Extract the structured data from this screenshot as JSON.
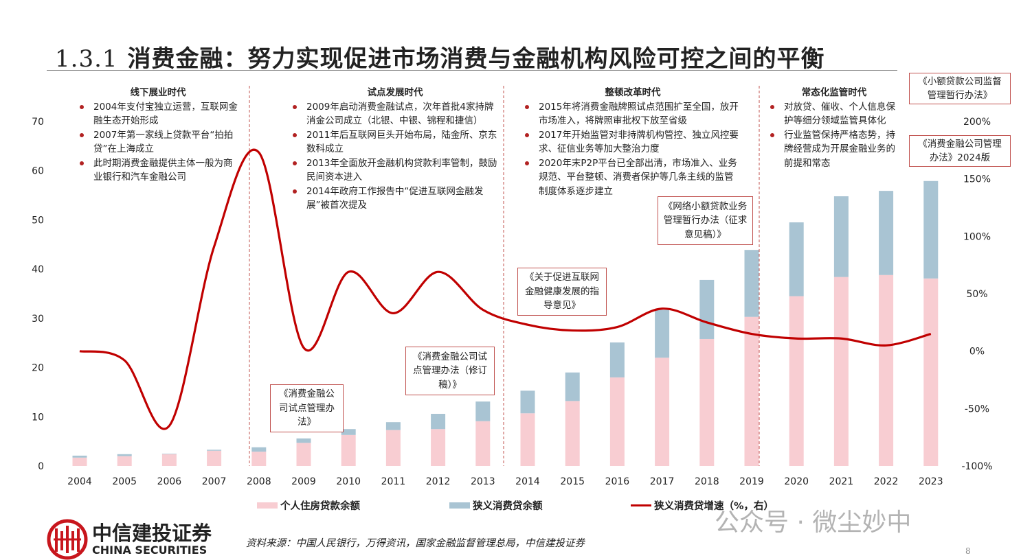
{
  "header": {
    "section_number": "1.3.1",
    "title": "消费金融：努力实现促进市场消费与金融机构风险可控之间的平衡"
  },
  "eras": [
    {
      "title": "线下展业时代",
      "bullets": [
        "2004年支付宝独立运营，互联网金融生态开始形成",
        "2007年第一家线上贷款平台“拍拍贷”在上海成立",
        "此时期消费金融提供主体一般为商业银行和汽车金融公司"
      ]
    },
    {
      "title": "试点发展时代",
      "bullets": [
        "2009年启动消费金融试点，次年首批4家持牌消金公司成立（北银、中银、锦程和捷信）",
        "2011年后互联网巨头开始布局，陆金所、京东数科成立",
        "2013年全面放开金融机构贷款利率管制，鼓励民间资本进入",
        "2014年政府工作报告中“促进互联网金融发展”被首次提及"
      ]
    },
    {
      "title": "整顿改革时代",
      "bullets": [
        "2015年将消费金融牌照试点范围扩至全国，放开市场准入，将牌照审批权下放至省级",
        "2017年开始监管对非持牌机构管控、独立风控要求、征信业务等加大整治力度",
        "2020年末P2P平台已全部出清，市场准入、业务规范、平台整顿、消费者保护等几条主线的监管制度体系逐步建立"
      ]
    },
    {
      "title": "常态化监管时代",
      "bullets": [
        "对放贷、催收、个人信息保护等细分领域监管具体化",
        "行业监管保持严格态势，持牌经营成为开展金融业务的前提和常态"
      ]
    }
  ],
  "annotations": [
    "《消费金融公司试点管理办法》",
    "《消费金融公司试点管理办法（修订稿）》",
    "《关于促进互联网金融健康发展的指导意见》",
    "《网络小额贷款业务管理暂行办法（征求意见稿）》",
    "《小额贷款公司监督管理暂行办法》",
    "《消费金融公司管理办法》2024版"
  ],
  "chart_data": {
    "type": "bar",
    "stacked": true,
    "categories": [
      "2004",
      "2005",
      "2006",
      "2007",
      "2008",
      "2009",
      "2010",
      "2011",
      "2012",
      "2013",
      "2014",
      "2015",
      "2016",
      "2017",
      "2018",
      "2019",
      "2020",
      "2021",
      "2022",
      "2023"
    ],
    "series": [
      {
        "name": "个人住房贷款余额",
        "type": "bar",
        "axis": "left",
        "color": "#F8CDD2",
        "values": [
          1.7,
          2.0,
          2.4,
          3.1,
          2.9,
          4.7,
          6.3,
          7.3,
          7.5,
          9.1,
          10.7,
          13.2,
          18.0,
          22.0,
          25.8,
          30.3,
          34.5,
          38.4,
          38.8,
          38.1
        ]
      },
      {
        "name": "狭义消费贷余额",
        "type": "bar",
        "axis": "left",
        "color": "#A9C4D3",
        "values": [
          0.4,
          0.4,
          0.1,
          0.2,
          0.9,
          0.9,
          1.2,
          1.6,
          3.1,
          4.0,
          4.6,
          5.8,
          7.1,
          9.7,
          12.0,
          13.6,
          15.0,
          16.4,
          17.1,
          19.8
        ]
      },
      {
        "name": "狭义消费贷增速（%，右）",
        "type": "line",
        "axis": "right",
        "color": "#C00000",
        "values": [
          0,
          -8,
          -65,
          91,
          173,
          3,
          69,
          33,
          69,
          36,
          23,
          18,
          21,
          37,
          25,
          15,
          11,
          11,
          5,
          15
        ]
      }
    ],
    "left_axis": {
      "ticks": [
        "0",
        "10",
        "20",
        "30",
        "40",
        "50",
        "60",
        "70"
      ],
      "range": [
        0,
        70
      ]
    },
    "right_axis": {
      "ticks": [
        "-100%",
        "-50%",
        "0%",
        "50%",
        "100%",
        "150%",
        "200%"
      ],
      "range": [
        -100,
        200
      ]
    },
    "grid": false,
    "legend_position": "bottom"
  },
  "legend": [
    "个人住房贷款余额",
    "狭义消费贷余额",
    "狭义消费贷增速（%，右）"
  ],
  "footer": {
    "logo_cn": "中信建投证券",
    "logo_en": "CHINA SECURITIES",
    "source": "资料来源：中国人民银行，万得资讯，国家金融监督管理总局，中信建投证券",
    "watermark": "公众号 · 微尘妙中",
    "page_number": "8"
  }
}
